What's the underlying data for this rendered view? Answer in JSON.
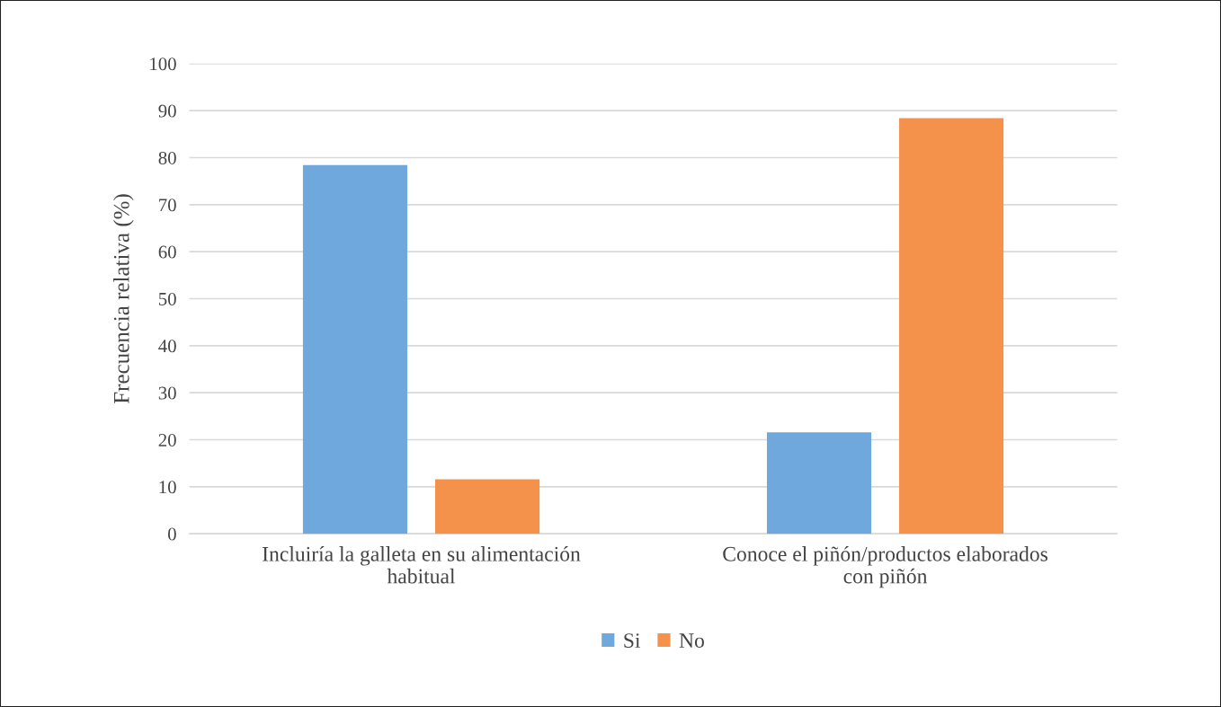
{
  "chart_data": {
    "type": "bar",
    "ylabel": "Frecuencia relativa (%)",
    "categories": [
      "Incluiría la galleta en su alimentación\nhabitual",
      "Conoce el piñón/productos elaborados\ncon piñón"
    ],
    "series": [
      {
        "name": "Si",
        "color": "#6fa8dc",
        "values": [
          78.4,
          21.6
        ]
      },
      {
        "name": "No",
        "color": "#f4914b",
        "values": [
          11.6,
          88.4
        ]
      }
    ],
    "ylim": [
      0,
      100
    ],
    "yticks": [
      0,
      10,
      20,
      30,
      40,
      50,
      60,
      70,
      80,
      90,
      100
    ],
    "grid": "y",
    "legend": "bottom"
  }
}
